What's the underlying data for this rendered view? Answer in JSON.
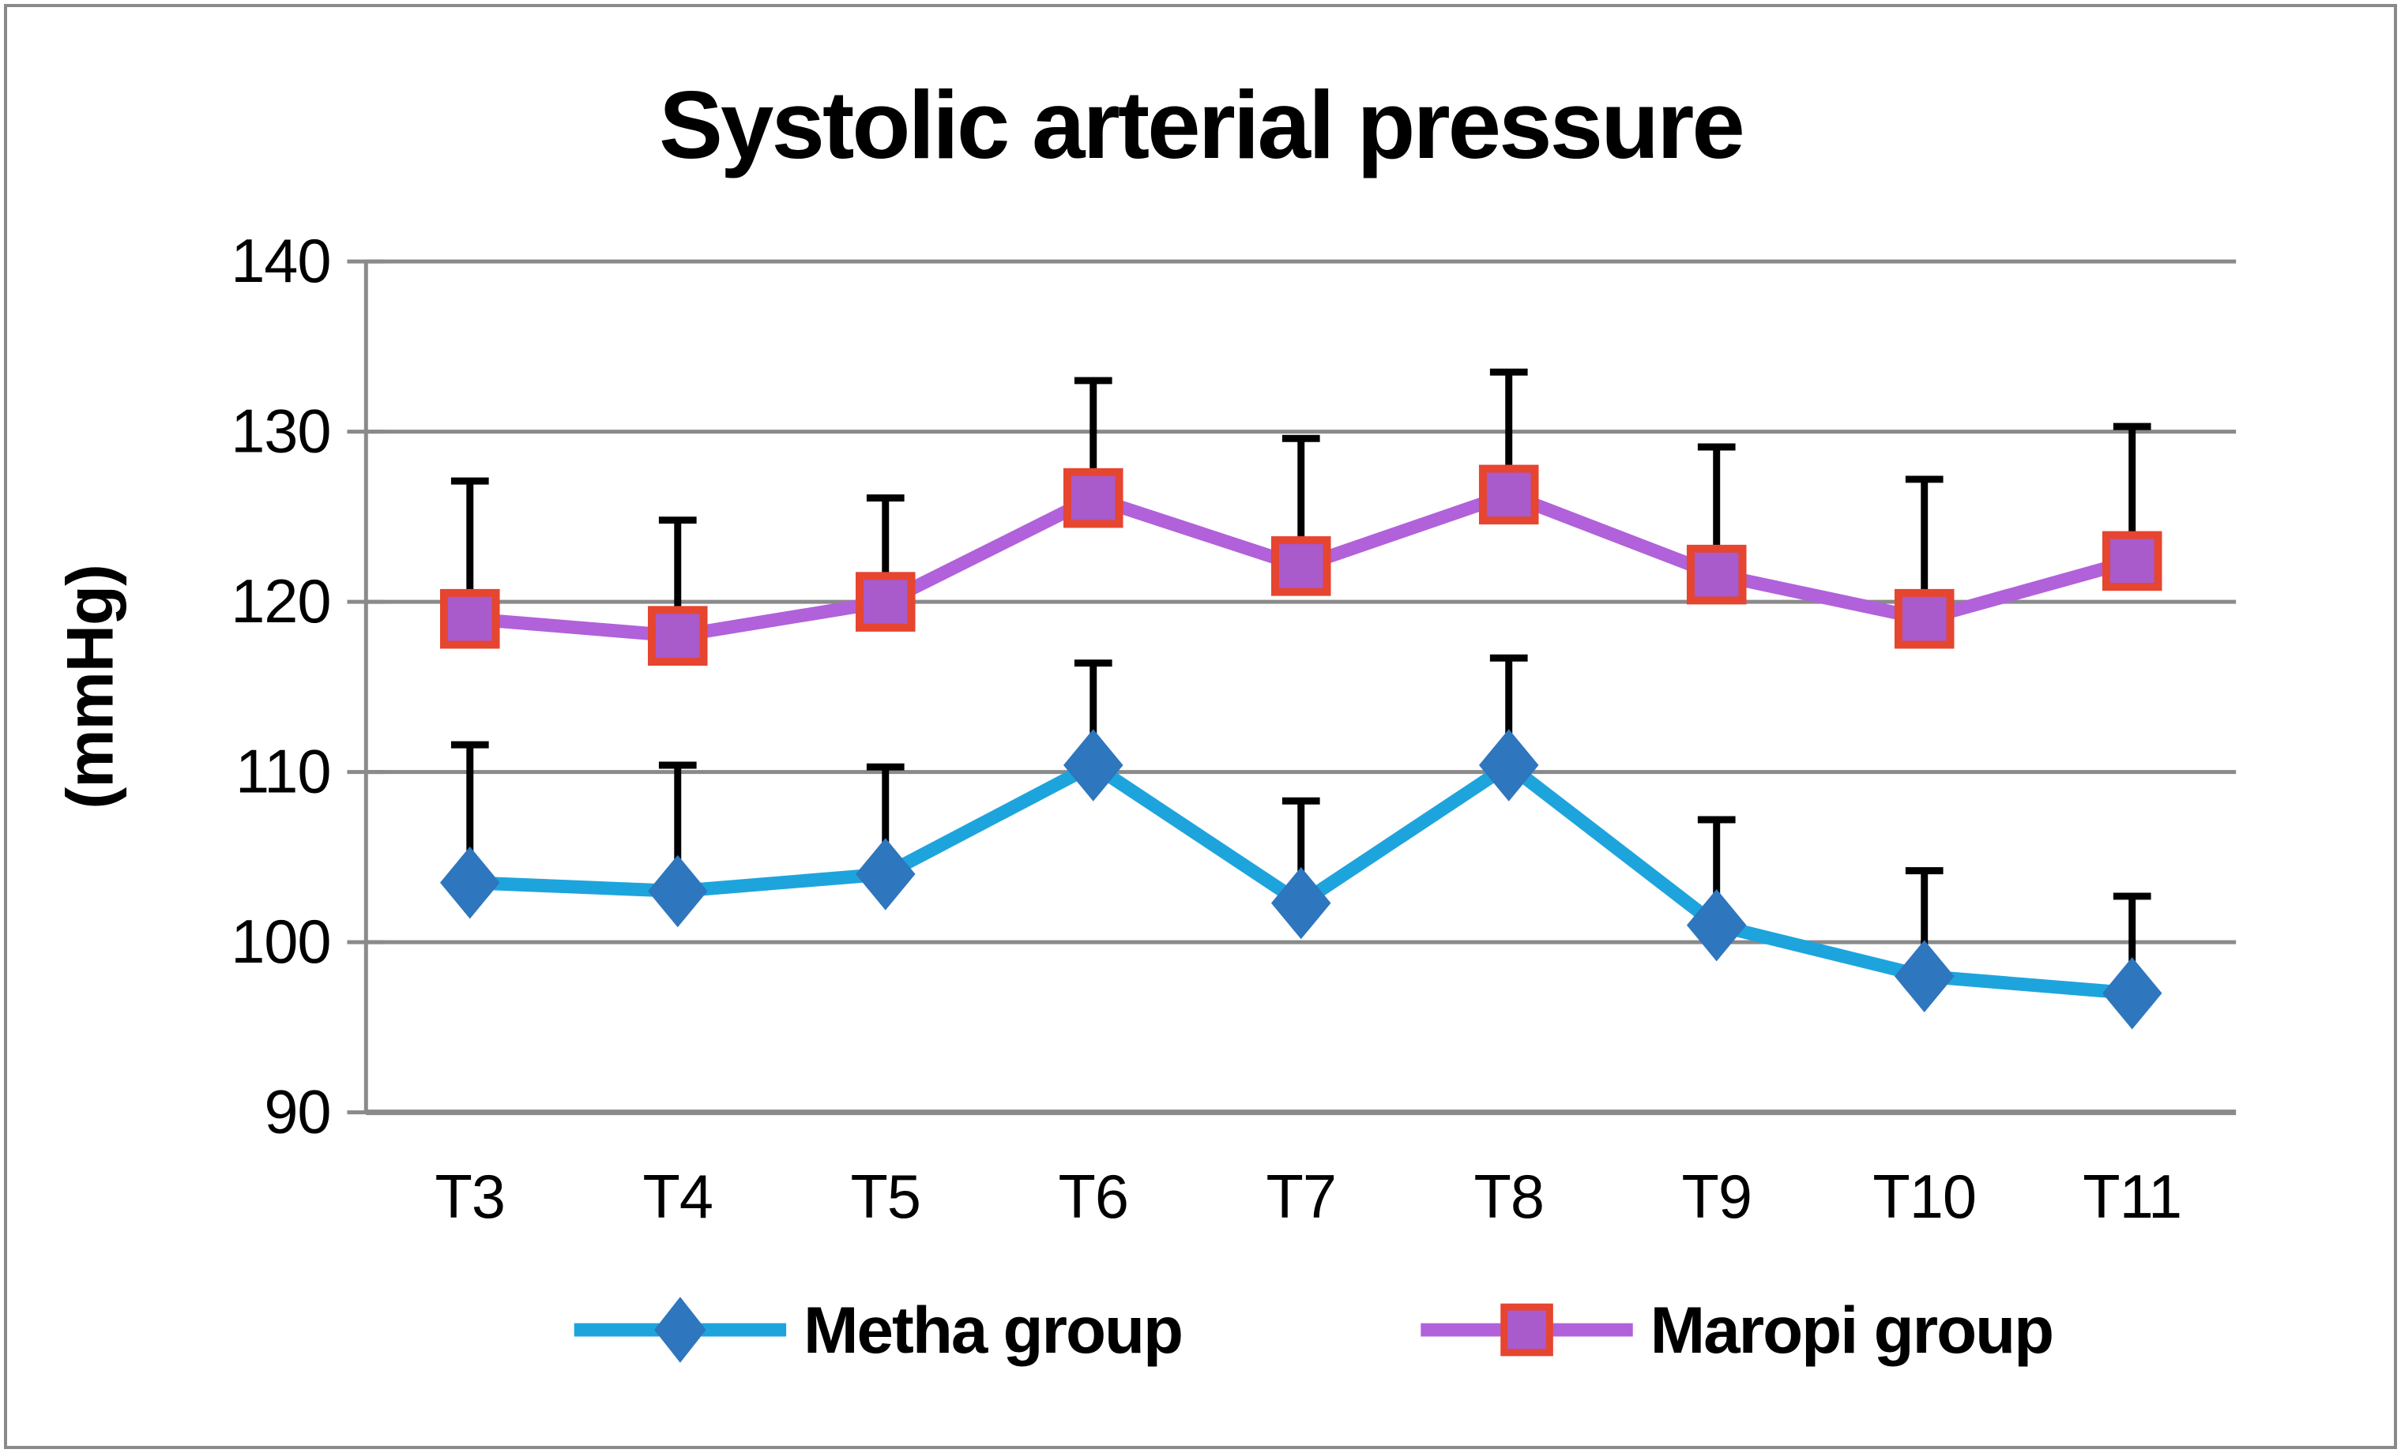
{
  "figure": {
    "background": "#ffffff",
    "border_color": "#8a8a8a",
    "grid_color": "#8a8a8a",
    "error_bar_color": "#000000"
  },
  "chart_data": {
    "type": "line",
    "title": "Systolic arterial pressure",
    "xlabel": "",
    "ylabel": "(mmHg)",
    "categories": [
      "T3",
      "T4",
      "T5",
      "T6",
      "T7",
      "T8",
      "T9",
      "T10",
      "T11"
    ],
    "ylim": [
      90,
      140
    ],
    "ytick_step": 10,
    "yticks": [
      90,
      100,
      110,
      120,
      130,
      140
    ],
    "grid": true,
    "legend_position": "bottom",
    "error_bars": "upper-only",
    "series": [
      {
        "name": "Metha group",
        "marker": "diamond",
        "line_color": "#1ea4dc",
        "marker_color": "#2e76be",
        "values": [
          103.5,
          103.0,
          104.0,
          110.4,
          102.3,
          110.4,
          101.0,
          98.0,
          97.0
        ],
        "error_upper": [
          8.1,
          7.4,
          6.3,
          6.0,
          6.0,
          6.3,
          6.2,
          6.2,
          5.7
        ]
      },
      {
        "name": "Maropi group",
        "marker": "square",
        "line_color": "#b161da",
        "marker_color": "#a95acb",
        "marker_border": "#e64530",
        "values": [
          119.0,
          118.0,
          120.0,
          126.1,
          122.1,
          126.3,
          121.6,
          119.0,
          122.4
        ],
        "error_upper": [
          8.1,
          6.8,
          6.1,
          6.9,
          7.5,
          7.2,
          7.5,
          8.2,
          7.9
        ]
      }
    ]
  }
}
